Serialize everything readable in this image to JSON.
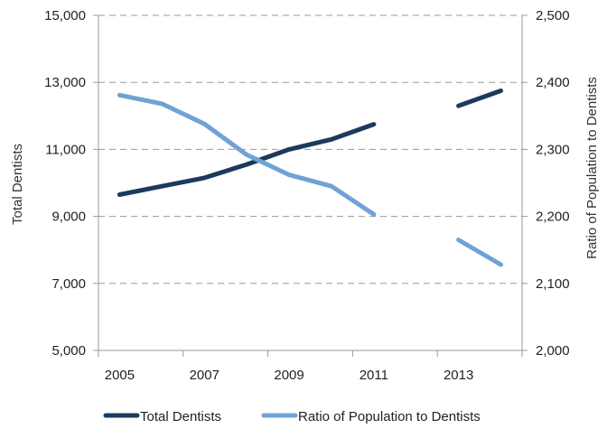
{
  "chart_data": {
    "type": "line",
    "title": "",
    "xlabel": "",
    "ylabel": "Total Dentists",
    "y2label": "Ratio of Population to Dentists",
    "x": [
      2005,
      2006,
      2007,
      2008,
      2009,
      2010,
      2011,
      2012,
      2013,
      2014
    ],
    "x_tick_labels": [
      "2005",
      "2007",
      "2009",
      "2011",
      "2013"
    ],
    "xlim": [
      2004.5,
      2014.5
    ],
    "ylim": [
      5000,
      15000
    ],
    "y_ticks": [
      5000,
      7000,
      9000,
      11000,
      13000,
      15000
    ],
    "y_tick_labels": [
      "5,000",
      "7,000",
      "9,000",
      "11,000",
      "13,000",
      "15,000"
    ],
    "y2lim": [
      2000,
      2500
    ],
    "y2_ticks": [
      2000,
      2100,
      2200,
      2300,
      2400,
      2500
    ],
    "y2_tick_labels": [
      "2,000",
      "2,100",
      "2,200",
      "2,300",
      "2,400",
      "2,500"
    ],
    "grid": true,
    "legend_position": "bottom",
    "series": [
      {
        "name": "Total Dentists",
        "axis": "left",
        "color": "#1b3a5c",
        "values": [
          9650,
          9900,
          10150,
          10550,
          11000,
          11300,
          11750,
          null,
          12300,
          12750
        ]
      },
      {
        "name": "Ratio of Population to Dentists",
        "axis": "right",
        "color": "#6fa3d4",
        "values": [
          2381,
          2368,
          2338,
          2292,
          2262,
          2245,
          2203,
          null,
          2165,
          2128
        ]
      }
    ]
  }
}
